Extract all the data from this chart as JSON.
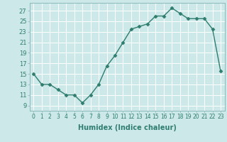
{
  "x": [
    0,
    1,
    2,
    3,
    4,
    5,
    6,
    7,
    8,
    9,
    10,
    11,
    12,
    13,
    14,
    15,
    16,
    17,
    18,
    19,
    20,
    21,
    22,
    23
  ],
  "y": [
    15,
    13,
    13,
    12,
    11,
    11,
    9.5,
    11,
    13,
    16.5,
    18.5,
    21,
    23.5,
    24,
    24.5,
    26,
    26,
    27.5,
    26.5,
    25.5,
    25.5,
    25.5,
    23.5,
    15.5
  ],
  "line_color": "#2e7d6e",
  "marker": "D",
  "marker_size": 2.5,
  "bg_color": "#cce8e8",
  "grid_color": "#b0d4d4",
  "xlabel": "Humidex (Indice chaleur)",
  "xlim": [
    -0.5,
    23.5
  ],
  "ylim": [
    8,
    28.5
  ],
  "xticks": [
    0,
    1,
    2,
    3,
    4,
    5,
    6,
    7,
    8,
    9,
    10,
    11,
    12,
    13,
    14,
    15,
    16,
    17,
    18,
    19,
    20,
    21,
    22,
    23
  ],
  "yticks": [
    9,
    11,
    13,
    15,
    17,
    19,
    21,
    23,
    25,
    27
  ],
  "xtick_fontsize": 5.5,
  "ytick_fontsize": 6.0,
  "xlabel_fontsize": 7.0,
  "linewidth": 1.0
}
